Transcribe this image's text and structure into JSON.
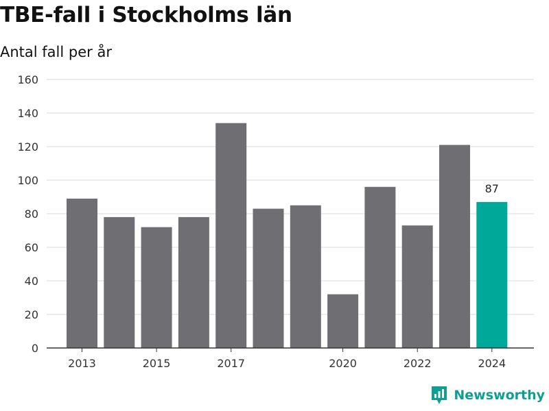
{
  "chart_data": {
    "type": "bar",
    "title": "TBE-fall i Stockholms län",
    "subtitle": "Antal fall per år",
    "xlabel": "",
    "ylabel": "",
    "categories": [
      "2013",
      "2014",
      "2015",
      "2016",
      "2017",
      "2018",
      "2019",
      "2020",
      "2021",
      "2022",
      "2023",
      "2024"
    ],
    "values": [
      89,
      78,
      72,
      78,
      134,
      83,
      85,
      32,
      96,
      73,
      121,
      87
    ],
    "x_tick_labels": [
      "2013",
      "2015",
      "2017",
      "2020",
      "2022",
      "2024"
    ],
    "y_ticks": [
      0,
      20,
      40,
      60,
      80,
      100,
      120,
      140,
      160
    ],
    "ylim": [
      0,
      160
    ],
    "grid": true,
    "highlight_category": "2024",
    "highlight_label": "87",
    "colors": {
      "bar": "#6f6e73",
      "highlight": "#00a89a",
      "grid": "#d9d9d9",
      "axis": "#333333"
    }
  },
  "brand": {
    "name": "Newsworthy",
    "icon": "newsworthy-logo-icon"
  }
}
